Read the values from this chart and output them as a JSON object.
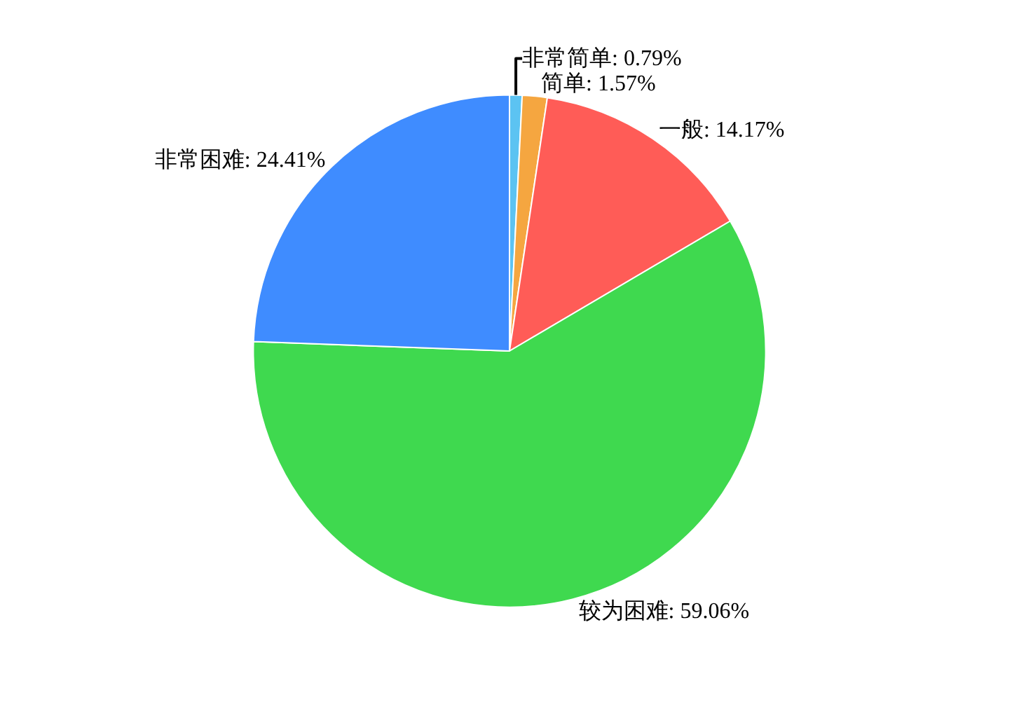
{
  "chart_data": {
    "type": "pie",
    "categories": [
      "非常简单",
      "简单",
      "一般",
      "较为困难",
      "非常困难"
    ],
    "values": [
      0.79,
      1.57,
      14.17,
      59.06,
      24.41
    ],
    "value_labels": [
      "0.79%",
      "1.57%",
      "14.17%",
      "59.06%",
      "24.41%"
    ],
    "colors": [
      "#5cc3f2",
      "#f5a640",
      "#ff5c57",
      "#3fd94f",
      "#3f8cff"
    ],
    "legend": false
  }
}
